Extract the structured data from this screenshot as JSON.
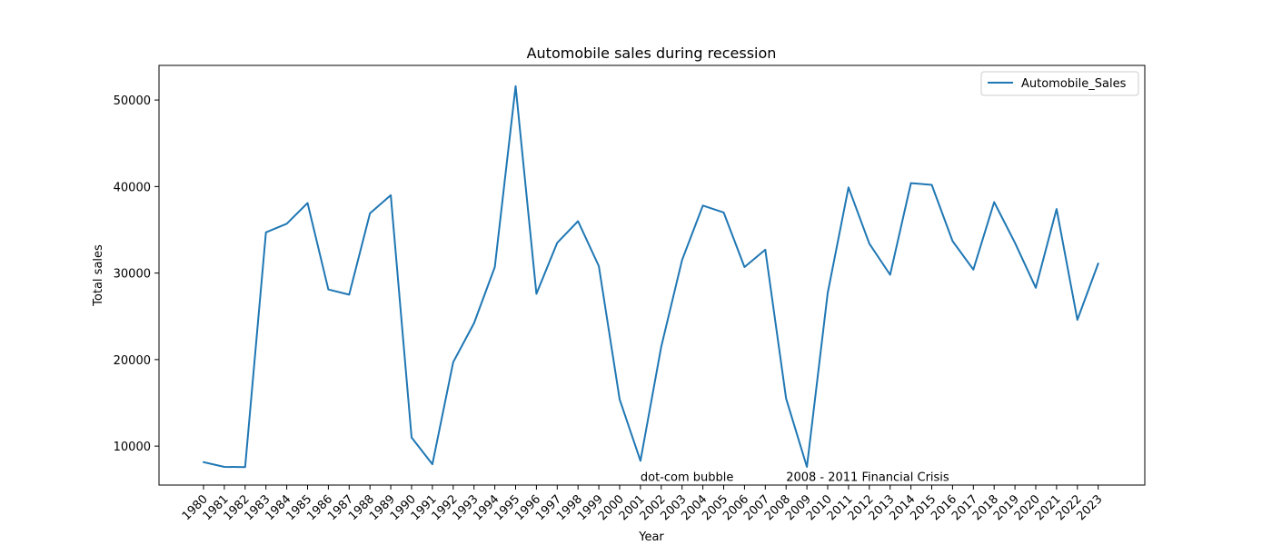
{
  "chart_data": {
    "type": "line",
    "title": "Automobile sales during recession",
    "xlabel": "Year",
    "ylabel": "Total sales",
    "categories": [
      "1980",
      "1981",
      "1982",
      "1983",
      "1984",
      "1985",
      "1986",
      "1987",
      "1988",
      "1989",
      "1990",
      "1991",
      "1992",
      "1993",
      "1994",
      "1995",
      "1996",
      "1997",
      "1998",
      "1999",
      "2000",
      "2001",
      "2002",
      "2003",
      "2004",
      "2005",
      "2006",
      "2007",
      "2008",
      "2009",
      "2010",
      "2011",
      "2012",
      "2013",
      "2014",
      "2015",
      "2016",
      "2017",
      "2018",
      "2019",
      "2020",
      "2021",
      "2022",
      "2023"
    ],
    "series": [
      {
        "name": "Automobile_Sales",
        "color": "#1f77b4",
        "values": [
          8150,
          7600,
          7580,
          34700,
          35700,
          38100,
          28100,
          27500,
          36900,
          39000,
          11000,
          7900,
          19700,
          24200,
          30700,
          51600,
          27600,
          33500,
          36000,
          30800,
          15400,
          8300,
          21500,
          31500,
          37800,
          37000,
          30700,
          32700,
          15500,
          7600,
          27700,
          39900,
          33400,
          29800,
          40400,
          40200,
          33700,
          30400,
          38200,
          33500,
          28300,
          37400,
          24600,
          31100
        ]
      }
    ],
    "ylim": [
      5500,
      54000
    ],
    "yticks": [
      10000,
      20000,
      30000,
      40000,
      50000
    ],
    "grid": false,
    "legend_position": "top-right",
    "annotations": [
      {
        "text": "dot-com bubble",
        "x": "2001",
        "y": 6100
      },
      {
        "text": "2008 - 2011 Financial Crisis",
        "x": "2008",
        "y": 6100
      }
    ]
  }
}
